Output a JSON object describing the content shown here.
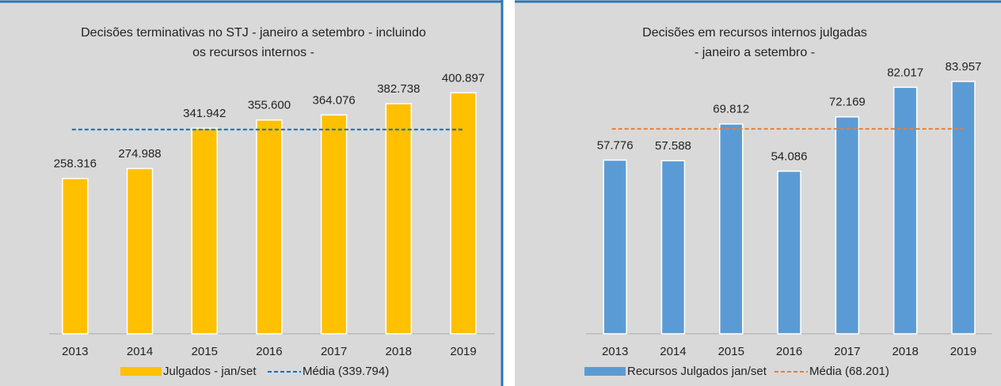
{
  "chart_data": [
    {
      "type": "bar",
      "title": [
        "Decisões terminativas no STJ - janeiro a setembro - incluindo",
        "os recursos internos -"
      ],
      "categories": [
        "2013",
        "2014",
        "2015",
        "2016",
        "2017",
        "2018",
        "2019"
      ],
      "series": [
        {
          "name": "Julgados - jan/set",
          "color": "#ffc000",
          "values": [
            258316,
            274988,
            341942,
            355600,
            364076,
            382738,
            400897
          ],
          "value_labels": [
            "258.316",
            "274.988",
            "341.942",
            "355.600",
            "364.076",
            "382.738",
            "400.897"
          ]
        }
      ],
      "mean": {
        "name": "Média (339.794)",
        "value": 339794,
        "color": "#0070c0"
      },
      "ylim": [
        0,
        450000
      ]
    },
    {
      "type": "bar",
      "title": [
        "Decisões em recursos internos julgadas",
        "- janeiro a setembro -"
      ],
      "categories": [
        "2013",
        "2014",
        "2015",
        "2016",
        "2017",
        "2018",
        "2019"
      ],
      "series": [
        {
          "name": "Recursos Julgados jan/set",
          "color": "#5b9bd5",
          "values": [
            57776,
            57588,
            69812,
            54086,
            72169,
            82017,
            83957
          ],
          "value_labels": [
            "57.776",
            "57.588",
            "69.812",
            "54.086",
            "72.169",
            "82.017",
            "83.957"
          ]
        }
      ],
      "mean": {
        "name": "Média (68.201)",
        "value": 68201,
        "color": "#ed7d31"
      },
      "ylim": [
        0,
        90000
      ]
    }
  ]
}
